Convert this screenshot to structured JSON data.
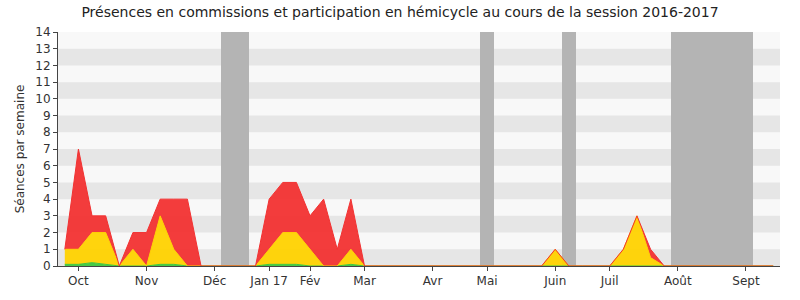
{
  "chart_data": {
    "type": "area",
    "title": "Présences en commissions et participation en hémicycle au cours de la session 2016-2017",
    "y_label": "Séances par semaine",
    "stacked": true,
    "grid": true,
    "categories": [
      null,
      "Oct",
      null,
      null,
      null,
      null,
      "Nov",
      null,
      null,
      null,
      null,
      "Déc",
      null,
      null,
      null,
      "Jan 17",
      null,
      null,
      "Fév",
      null,
      null,
      null,
      "Mar",
      null,
      null,
      null,
      null,
      "Avr",
      null,
      null,
      null,
      "Mai",
      null,
      null,
      null,
      null,
      "Juin",
      null,
      null,
      null,
      "Juil",
      null,
      null,
      null,
      null,
      "Août",
      null,
      null,
      null,
      null,
      "Sept",
      null,
      null
    ],
    "series": [
      {
        "type": "bar",
        "color": "#b4b4b4",
        "values": [
          null,
          null,
          null,
          null,
          null,
          null,
          null,
          null,
          null,
          null,
          null,
          null,
          14,
          14,
          null,
          null,
          null,
          null,
          null,
          null,
          null,
          null,
          null,
          null,
          null,
          null,
          null,
          null,
          null,
          null,
          null,
          14,
          null,
          null,
          null,
          null,
          null,
          14,
          null,
          null,
          null,
          null,
          null,
          null,
          null,
          14,
          14,
          14,
          14,
          14,
          14,
          null,
          null
        ]
      },
      {
        "type": "area",
        "color": "#3ec83e",
        "values": [
          0.1,
          0.1,
          0.2,
          0.1,
          0,
          0,
          0,
          0.1,
          0.1,
          0,
          0,
          0,
          0,
          0,
          0,
          0.1,
          0.1,
          0.1,
          0,
          0,
          0,
          0.1,
          0,
          0,
          0,
          0,
          0,
          0,
          0,
          0,
          0,
          0,
          0,
          0,
          0,
          0,
          0,
          0,
          0,
          0,
          0,
          0,
          0,
          0,
          0,
          0,
          0,
          0,
          0,
          0,
          0,
          0,
          0
        ]
      },
      {
        "type": "area",
        "color": "#ffd200",
        "values": [
          0.9,
          0.9,
          1.8,
          1.9,
          0,
          1,
          0,
          2.9,
          0.9,
          0,
          0,
          0,
          0,
          0,
          0,
          0.9,
          1.9,
          1.9,
          1,
          0,
          0,
          0.9,
          0,
          0,
          0,
          0,
          0,
          0,
          0,
          0,
          0,
          0,
          0,
          0,
          0,
          0,
          1,
          0,
          0,
          0,
          0,
          1,
          3,
          0.5,
          0,
          0,
          0,
          0,
          0,
          0,
          0,
          0,
          0
        ]
      },
      {
        "type": "area",
        "color": "#f23232",
        "values": [
          0,
          6,
          1,
          1,
          0,
          1,
          2,
          1,
          3,
          4,
          0,
          0,
          0,
          0,
          0,
          3,
          3,
          3,
          2,
          4,
          1,
          3,
          0,
          0,
          0,
          0,
          0,
          0,
          0,
          0,
          0,
          0,
          0,
          0,
          0,
          0,
          0,
          0,
          0,
          0,
          0,
          0,
          0,
          0.5,
          0,
          0,
          0,
          0,
          0,
          0,
          0,
          0,
          0
        ]
      }
    ],
    "ylim": [
      0,
      14
    ],
    "yticks": [
      0,
      1,
      2,
      3,
      4,
      5,
      6,
      7,
      8,
      9,
      10,
      11,
      12,
      13,
      14
    ]
  }
}
